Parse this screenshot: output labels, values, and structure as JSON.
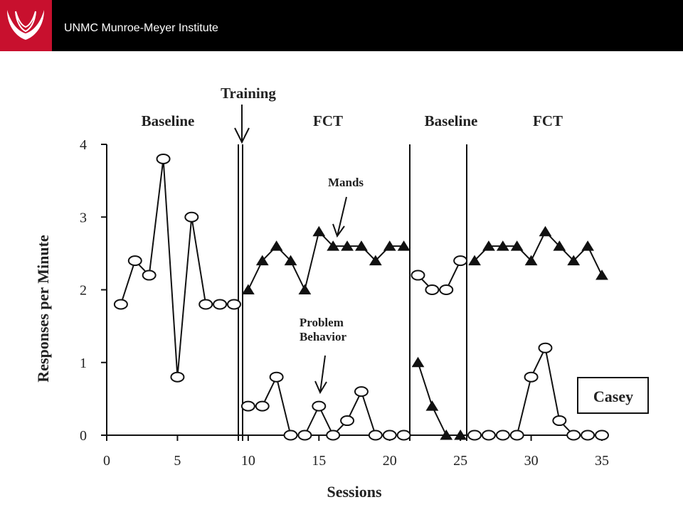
{
  "header": {
    "institute": "UNMC Munroe-Meyer Institute",
    "logo_icon": "unmc-logo-icon",
    "bg_color": "#000000",
    "logo_bg_color": "#c8102e"
  },
  "chart_data": {
    "type": "line",
    "title": "",
    "xlabel": "Sessions",
    "ylabel": "Responses per Minute",
    "xlim": [
      0,
      35
    ],
    "ylim": [
      0,
      4
    ],
    "xticks": [
      0,
      5,
      10,
      15,
      20,
      25,
      30,
      35
    ],
    "yticks": [
      0,
      1,
      2,
      3,
      4
    ],
    "grid": false,
    "phase_labels": [
      "Baseline",
      "FCT",
      "Baseline",
      "FCT"
    ],
    "phase_change_sessions": [
      9.6,
      21.6,
      25.6
    ],
    "annotations": [
      "Training",
      "Mands",
      "Problem Behavior"
    ],
    "participant": "Casey",
    "series": [
      {
        "name": "Problem Behavior",
        "marker": "open-circle",
        "segments": [
          {
            "x": [
              1,
              2,
              3,
              4,
              5,
              6,
              7,
              8,
              9
            ],
            "y": [
              1.8,
              2.4,
              2.2,
              3.8,
              0.8,
              3.0,
              1.8,
              1.8,
              1.8
            ]
          },
          {
            "x": [
              10,
              11,
              12,
              13,
              14,
              15,
              16,
              17,
              18,
              19,
              20,
              21
            ],
            "y": [
              0.4,
              0.4,
              0.8,
              0,
              0,
              0.4,
              0,
              0.2,
              0.6,
              0,
              0,
              0
            ]
          },
          {
            "x": [
              22,
              23,
              24,
              25
            ],
            "y": [
              2.2,
              2.0,
              2.0,
              2.4
            ]
          },
          {
            "x": [
              26,
              27,
              28,
              29,
              30,
              31,
              32,
              33,
              34,
              35
            ],
            "y": [
              0,
              0,
              0,
              0,
              0.8,
              1.2,
              0.2,
              0,
              0,
              0
            ]
          }
        ]
      },
      {
        "name": "Mands",
        "marker": "filled-triangle",
        "segments": [
          {
            "x": [
              10,
              11,
              12,
              13,
              14,
              15,
              16,
              17,
              18,
              19,
              20,
              21
            ],
            "y": [
              2.0,
              2.4,
              2.6,
              2.4,
              2.0,
              2.8,
              2.6,
              2.6,
              2.6,
              2.4,
              2.6,
              2.6
            ]
          },
          {
            "x": [
              22,
              23,
              24,
              25
            ],
            "y": [
              1.0,
              0.4,
              0,
              0
            ]
          },
          {
            "x": [
              26,
              27,
              28,
              29,
              30,
              31,
              32,
              33,
              34,
              35
            ],
            "y": [
              2.4,
              2.6,
              2.6,
              2.6,
              2.4,
              2.8,
              2.6,
              2.4,
              2.6,
              2.2
            ]
          }
        ]
      }
    ]
  }
}
